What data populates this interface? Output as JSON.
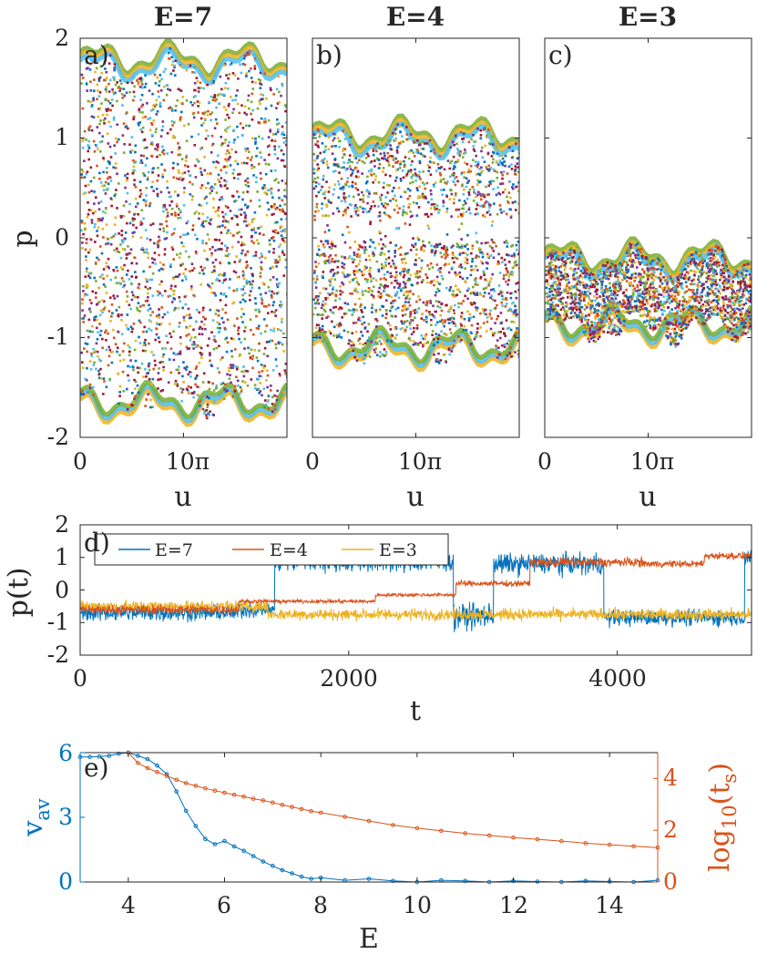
{
  "colors": {
    "axis": "#262626",
    "E7": "#0072BD",
    "E4": "#D95319",
    "E3": "#EDB120",
    "v_av": "#0072BD",
    "t_s": "#D95319",
    "scatter": [
      "#0072BD",
      "#D95319",
      "#EDB120",
      "#7E2F8E",
      "#77AC30",
      "#4DBEEE",
      "#A2142F"
    ]
  },
  "chart_data": [
    {
      "type": "scatter",
      "panel": "a)",
      "title": "E=7",
      "xlabel": "u",
      "ylabel": "p",
      "xlim": [
        0,
        20
      ],
      "ylim": [
        -2,
        2
      ],
      "xticks": [
        0,
        10
      ],
      "xtick_labels": [
        "0",
        "10π"
      ],
      "yticks": [
        2,
        1,
        0,
        -1,
        -2
      ],
      "ytick_labels": [
        "2",
        "1",
        "0",
        "-1",
        "-2"
      ],
      "band": {
        "center": 0.05,
        "half_width": 1.75
      }
    },
    {
      "type": "scatter",
      "panel": "b)",
      "title": "E=4",
      "xlabel": "u",
      "ylabel": "",
      "xlim": [
        0,
        20
      ],
      "ylim": [
        -2,
        2
      ],
      "xticks": [
        0,
        10
      ],
      "xtick_labels": [
        "0",
        "10π"
      ],
      "band": {
        "center": -0.05,
        "half_width": 1.1
      }
    },
    {
      "type": "scatter",
      "panel": "c)",
      "title": "E=3",
      "xlabel": "u",
      "ylabel": "",
      "xlim": [
        0,
        20
      ],
      "ylim": [
        -2,
        2
      ],
      "xticks": [
        0,
        10
      ],
      "xtick_labels": [
        "0",
        "10π"
      ],
      "band": {
        "center": -0.55,
        "half_width": 0.37
      }
    },
    {
      "type": "line",
      "panel": "d)",
      "xlabel": "t",
      "ylabel": "p(t)",
      "xlim": [
        0,
        5000
      ],
      "ylim": [
        -2,
        2
      ],
      "xticks": [
        0,
        2000,
        4000
      ],
      "xtick_labels": [
        "0",
        "2000",
        "4000"
      ],
      "yticks": [
        2,
        1,
        0,
        -1,
        -2
      ],
      "ytick_labels": [
        "2",
        "1",
        "0",
        "-1",
        "-2"
      ],
      "legend": [
        "E=7",
        "E=4",
        "E=3"
      ],
      "series": [
        {
          "name": "E=7",
          "segments": [
            [
              0,
              1180,
              -0.7,
              0.35
            ],
            [
              1180,
              1450,
              -0.6,
              0.35
            ],
            [
              1450,
              2780,
              0.85,
              0.4
            ],
            [
              2780,
              3080,
              -0.8,
              0.55
            ],
            [
              3080,
              3900,
              0.8,
              0.45
            ],
            [
              3900,
              4950,
              -0.85,
              0.35
            ],
            [
              4950,
              5000,
              1.0,
              0.4
            ]
          ]
        },
        {
          "name": "E=4",
          "segments": [
            [
              0,
              1180,
              -0.6,
              0.2
            ],
            [
              1180,
              2200,
              -0.35,
              0.08
            ],
            [
              2200,
              2800,
              -0.15,
              0.08
            ],
            [
              2800,
              3350,
              0.2,
              0.12
            ],
            [
              3350,
              4200,
              0.85,
              0.2
            ],
            [
              4200,
              4650,
              0.8,
              0.15
            ],
            [
              4650,
              5000,
              1.05,
              0.15
            ]
          ]
        },
        {
          "name": "E=3",
          "segments": [
            [
              0,
              1400,
              -0.5,
              0.25
            ],
            [
              1400,
              5000,
              -0.75,
              0.25
            ]
          ]
        }
      ]
    },
    {
      "type": "line",
      "panel": "e)",
      "xlabel": "E",
      "ylabel": "v_av",
      "ylabel_main": "v",
      "ylabel_sub": "av",
      "ylabel_right": "log10(t_s)",
      "ylabel_right_pre": "log",
      "ylabel_right_sub1": "10",
      "ylabel_right_mid": "(t",
      "ylabel_right_sub2": "s",
      "ylabel_right_post": ")",
      "xlim": [
        3,
        15
      ],
      "ylim": [
        0,
        6
      ],
      "ylim_right": [
        0,
        5
      ],
      "xticks": [
        4,
        6,
        8,
        10,
        12,
        14
      ],
      "xtick_labels": [
        "4",
        "6",
        "8",
        "10",
        "12",
        "14"
      ],
      "yticks": [
        0,
        3,
        6
      ],
      "ytick_labels": [
        "0",
        "3",
        "6"
      ],
      "yticks_right": [
        0,
        2,
        4
      ],
      "ytick_labels_right": [
        "0",
        "2",
        "4"
      ],
      "series": [
        {
          "name": "v_av",
          "axis": "left",
          "x": [
            3,
            3.2,
            3.4,
            3.6,
            3.8,
            4.0,
            4.2,
            4.4,
            4.6,
            4.8,
            5.0,
            5.2,
            5.4,
            5.6,
            5.8,
            6.0,
            6.2,
            6.4,
            6.6,
            6.8,
            7.0,
            7.2,
            7.4,
            7.6,
            7.8,
            8.0,
            8.5,
            9.0,
            9.5,
            10.0,
            10.5,
            11.0,
            11.5,
            12.0,
            12.5,
            13.0,
            13.5,
            14.0,
            14.5,
            15.0
          ],
          "y": [
            5.8,
            5.8,
            5.82,
            5.85,
            5.95,
            6.0,
            5.85,
            5.7,
            5.4,
            5.0,
            4.2,
            3.3,
            2.6,
            2.0,
            1.75,
            1.9,
            1.65,
            1.45,
            1.2,
            0.95,
            0.75,
            0.55,
            0.4,
            0.25,
            0.15,
            0.2,
            0.08,
            0.15,
            0.05,
            0.0,
            0.08,
            0.05,
            0.0,
            0.05,
            0.02,
            0.0,
            0.05,
            0.02,
            0.0,
            0.08
          ]
        },
        {
          "name": "log10(t_s)",
          "axis": "right",
          "x": [
            4.0,
            4.2,
            4.4,
            4.6,
            4.8,
            5.0,
            5.2,
            5.4,
            5.6,
            5.8,
            6.0,
            6.2,
            6.4,
            6.6,
            6.8,
            7.0,
            7.2,
            7.4,
            7.6,
            7.8,
            8.0,
            8.5,
            9.0,
            9.5,
            10.0,
            10.5,
            11.0,
            11.5,
            12.0,
            12.5,
            13.0,
            13.5,
            14.0,
            14.5,
            15.0
          ],
          "y": [
            5.0,
            4.6,
            4.4,
            4.25,
            4.1,
            3.95,
            3.82,
            3.72,
            3.62,
            3.53,
            3.45,
            3.37,
            3.3,
            3.22,
            3.15,
            3.07,
            2.98,
            2.9,
            2.82,
            2.74,
            2.68,
            2.52,
            2.36,
            2.2,
            2.08,
            1.98,
            1.88,
            1.8,
            1.72,
            1.65,
            1.58,
            1.5,
            1.44,
            1.38,
            1.33
          ]
        }
      ]
    }
  ]
}
